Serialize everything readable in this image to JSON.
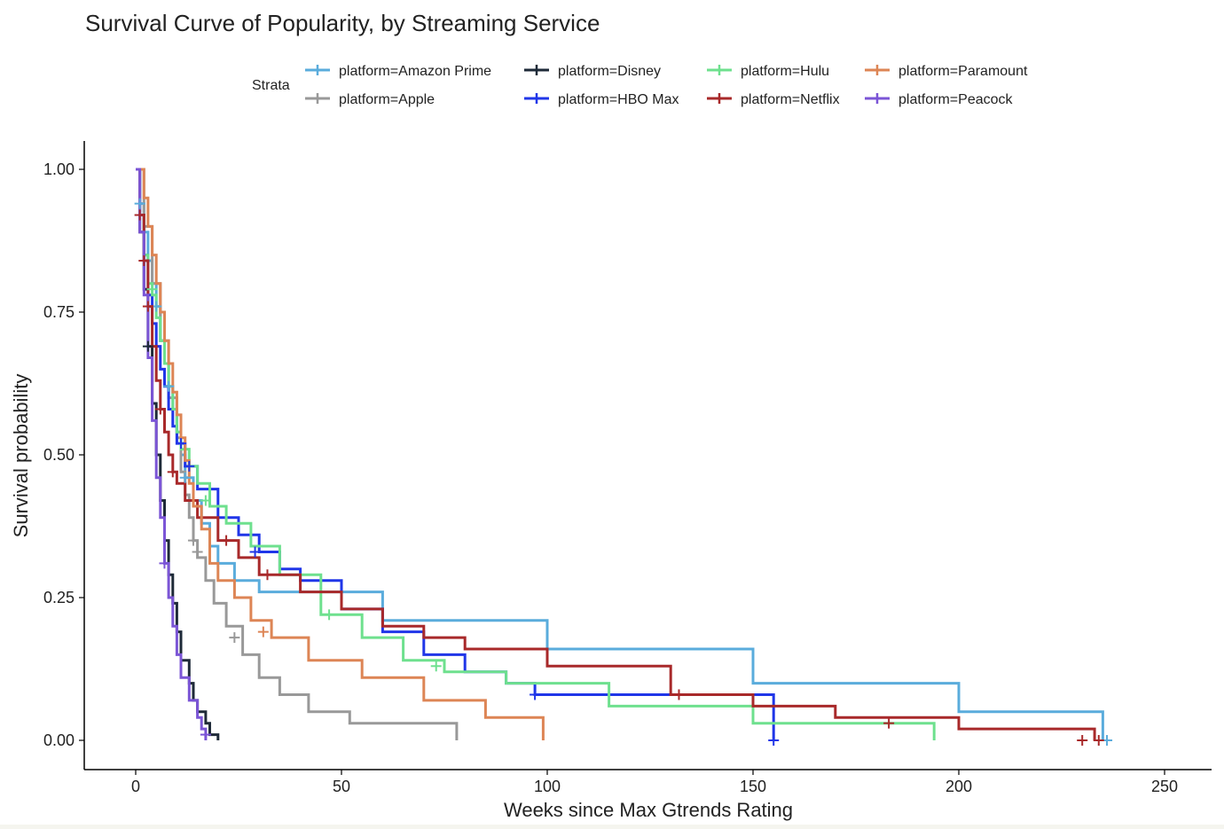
{
  "chart_data": {
    "type": "line",
    "subtype": "kaplan-meier step survival curves with censor marks",
    "title": "Survival Curve of Popularity, by Streaming Service",
    "xlabel": "Weeks since Max Gtrends Rating",
    "ylabel": "Survival probability",
    "xlim": [
      0,
      250
    ],
    "ylim": [
      0,
      1
    ],
    "x_ticks": [
      "0",
      "50",
      "100",
      "150",
      "200",
      "250"
    ],
    "y_ticks": [
      "0.00",
      "0.25",
      "0.50",
      "0.75",
      "1.00"
    ],
    "grid": false,
    "legend": {
      "title": "Strata",
      "position": "top",
      "rows": [
        [
          "platform=Amazon Prime",
          "platform=Disney",
          "platform=Hulu",
          "platform=Paramount"
        ],
        [
          "platform=Apple",
          "platform=HBO Max",
          "platform=Netflix",
          "platform=Peacock"
        ]
      ]
    },
    "series": [
      {
        "name": "platform=Amazon Prime",
        "color": "#5aacdc",
        "points": [
          [
            0,
            1.0
          ],
          [
            1,
            0.94
          ],
          [
            2,
            0.89
          ],
          [
            3,
            0.84
          ],
          [
            4,
            0.8
          ],
          [
            5,
            0.76
          ],
          [
            6,
            0.7
          ],
          [
            7,
            0.66
          ],
          [
            8,
            0.62
          ],
          [
            9,
            0.58
          ],
          [
            10,
            0.54
          ],
          [
            11,
            0.5
          ],
          [
            12,
            0.46
          ],
          [
            14,
            0.42
          ],
          [
            16,
            0.38
          ],
          [
            18,
            0.34
          ],
          [
            20,
            0.31
          ],
          [
            24,
            0.28
          ],
          [
            30,
            0.26
          ],
          [
            60,
            0.21
          ],
          [
            100,
            0.16
          ],
          [
            150,
            0.1
          ],
          [
            200,
            0.05
          ],
          [
            235,
            0.0
          ]
        ],
        "censor": [
          [
            1,
            0.94
          ],
          [
            5,
            0.76
          ],
          [
            8,
            0.62
          ],
          [
            12,
            0.46
          ],
          [
            236,
            0.0
          ]
        ]
      },
      {
        "name": "platform=Apple",
        "color": "#999999",
        "points": [
          [
            0,
            1.0
          ],
          [
            2,
            0.9
          ],
          [
            4,
            0.8
          ],
          [
            6,
            0.7
          ],
          [
            8,
            0.6
          ],
          [
            10,
            0.53
          ],
          [
            11,
            0.47
          ],
          [
            12,
            0.43
          ],
          [
            13,
            0.39
          ],
          [
            14,
            0.35
          ],
          [
            15,
            0.32
          ],
          [
            17,
            0.28
          ],
          [
            19,
            0.24
          ],
          [
            22,
            0.2
          ],
          [
            26,
            0.15
          ],
          [
            30,
            0.11
          ],
          [
            35,
            0.08
          ],
          [
            42,
            0.05
          ],
          [
            52,
            0.03
          ],
          [
            78,
            0.0
          ]
        ],
        "censor": [
          [
            14,
            0.35
          ],
          [
            15,
            0.33
          ],
          [
            24,
            0.18
          ]
        ]
      },
      {
        "name": "platform=Disney",
        "color": "#1e2a38",
        "points": [
          [
            0,
            1.0
          ],
          [
            1,
            0.89
          ],
          [
            2,
            0.79
          ],
          [
            3,
            0.69
          ],
          [
            4,
            0.59
          ],
          [
            5,
            0.5
          ],
          [
            6,
            0.42
          ],
          [
            7,
            0.35
          ],
          [
            8,
            0.29
          ],
          [
            9,
            0.24
          ],
          [
            10,
            0.19
          ],
          [
            11,
            0.14
          ],
          [
            13,
            0.1
          ],
          [
            14,
            0.07
          ],
          [
            15,
            0.05
          ],
          [
            17,
            0.03
          ],
          [
            18,
            0.01
          ],
          [
            20,
            0.0
          ]
        ],
        "censor": [
          [
            3,
            0.69
          ]
        ]
      },
      {
        "name": "platform=HBO Max",
        "color": "#2036e8",
        "points": [
          [
            0,
            1.0
          ],
          [
            1,
            0.92
          ],
          [
            2,
            0.85
          ],
          [
            3,
            0.78
          ],
          [
            4,
            0.73
          ],
          [
            5,
            0.69
          ],
          [
            6,
            0.65
          ],
          [
            7,
            0.62
          ],
          [
            8,
            0.58
          ],
          [
            9,
            0.55
          ],
          [
            10,
            0.52
          ],
          [
            12,
            0.48
          ],
          [
            15,
            0.44
          ],
          [
            20,
            0.39
          ],
          [
            25,
            0.36
          ],
          [
            30,
            0.33
          ],
          [
            35,
            0.3
          ],
          [
            40,
            0.28
          ],
          [
            50,
            0.23
          ],
          [
            60,
            0.19
          ],
          [
            70,
            0.15
          ],
          [
            80,
            0.12
          ],
          [
            90,
            0.1
          ],
          [
            97,
            0.08
          ],
          [
            155,
            0.0
          ]
        ],
        "censor": [
          [
            11,
            0.52
          ],
          [
            13,
            0.48
          ],
          [
            29,
            0.33
          ],
          [
            97,
            0.08
          ],
          [
            155,
            0.0
          ]
        ]
      },
      {
        "name": "platform=Hulu",
        "color": "#6ee08e",
        "points": [
          [
            0,
            1.0
          ],
          [
            1,
            0.92
          ],
          [
            2,
            0.85
          ],
          [
            3,
            0.8
          ],
          [
            4,
            0.78
          ],
          [
            5,
            0.74
          ],
          [
            6,
            0.7
          ],
          [
            7,
            0.66
          ],
          [
            8,
            0.62
          ],
          [
            9,
            0.58
          ],
          [
            10,
            0.54
          ],
          [
            11,
            0.51
          ],
          [
            13,
            0.48
          ],
          [
            15,
            0.45
          ],
          [
            18,
            0.41
          ],
          [
            22,
            0.38
          ],
          [
            28,
            0.34
          ],
          [
            35,
            0.29
          ],
          [
            45,
            0.22
          ],
          [
            55,
            0.18
          ],
          [
            65,
            0.14
          ],
          [
            75,
            0.12
          ],
          [
            90,
            0.1
          ],
          [
            115,
            0.06
          ],
          [
            150,
            0.03
          ],
          [
            194,
            0.0
          ]
        ],
        "censor": [
          [
            4,
            0.79
          ],
          [
            17,
            0.42
          ],
          [
            47,
            0.22
          ],
          [
            73,
            0.13
          ]
        ]
      },
      {
        "name": "platform=Netflix",
        "color": "#a8292a",
        "points": [
          [
            0,
            1.0
          ],
          [
            1,
            0.92
          ],
          [
            2,
            0.84
          ],
          [
            3,
            0.76
          ],
          [
            4,
            0.69
          ],
          [
            5,
            0.63
          ],
          [
            6,
            0.58
          ],
          [
            7,
            0.54
          ],
          [
            8,
            0.5
          ],
          [
            9,
            0.47
          ],
          [
            10,
            0.45
          ],
          [
            12,
            0.42
          ],
          [
            15,
            0.39
          ],
          [
            20,
            0.35
          ],
          [
            25,
            0.32
          ],
          [
            30,
            0.29
          ],
          [
            40,
            0.26
          ],
          [
            50,
            0.23
          ],
          [
            60,
            0.2
          ],
          [
            70,
            0.18
          ],
          [
            80,
            0.16
          ],
          [
            100,
            0.13
          ],
          [
            130,
            0.08
          ],
          [
            150,
            0.06
          ],
          [
            170,
            0.04
          ],
          [
            200,
            0.02
          ],
          [
            233,
            0.0
          ]
        ],
        "censor": [
          [
            1,
            0.92
          ],
          [
            2,
            0.84
          ],
          [
            3,
            0.76
          ],
          [
            6,
            0.58
          ],
          [
            9,
            0.47
          ],
          [
            22,
            0.35
          ],
          [
            32,
            0.29
          ],
          [
            132,
            0.08
          ],
          [
            183,
            0.03
          ],
          [
            230,
            0.0
          ],
          [
            234,
            0.0
          ]
        ]
      },
      {
        "name": "platform=Paramount",
        "color": "#dd8555",
        "points": [
          [
            0,
            1.0
          ],
          [
            2,
            0.95
          ],
          [
            3,
            0.9
          ],
          [
            4,
            0.85
          ],
          [
            5,
            0.8
          ],
          [
            6,
            0.75
          ],
          [
            7,
            0.7
          ],
          [
            8,
            0.66
          ],
          [
            9,
            0.61
          ],
          [
            10,
            0.57
          ],
          [
            11,
            0.53
          ],
          [
            12,
            0.49
          ],
          [
            13,
            0.45
          ],
          [
            14,
            0.41
          ],
          [
            16,
            0.37
          ],
          [
            18,
            0.31
          ],
          [
            20,
            0.28
          ],
          [
            24,
            0.25
          ],
          [
            28,
            0.21
          ],
          [
            33,
            0.18
          ],
          [
            42,
            0.14
          ],
          [
            55,
            0.11
          ],
          [
            70,
            0.07
          ],
          [
            85,
            0.04
          ],
          [
            99,
            0.0
          ]
        ],
        "censor": [
          [
            31,
            0.19
          ]
        ]
      },
      {
        "name": "platform=Peacock",
        "color": "#7b55d6",
        "points": [
          [
            0,
            1.0
          ],
          [
            1,
            0.89
          ],
          [
            2,
            0.78
          ],
          [
            3,
            0.67
          ],
          [
            4,
            0.56
          ],
          [
            5,
            0.46
          ],
          [
            6,
            0.39
          ],
          [
            7,
            0.31
          ],
          [
            8,
            0.25
          ],
          [
            9,
            0.2
          ],
          [
            10,
            0.15
          ],
          [
            11,
            0.11
          ],
          [
            13,
            0.07
          ],
          [
            15,
            0.04
          ],
          [
            16,
            0.02
          ],
          [
            17,
            0.0
          ]
        ],
        "censor": [
          [
            7,
            0.31
          ],
          [
            17,
            0.01
          ]
        ]
      }
    ]
  }
}
